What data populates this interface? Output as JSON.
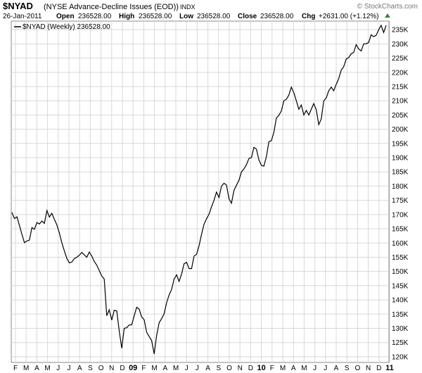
{
  "header": {
    "symbol": "$NYAD",
    "name": "(NYSE Advance-Decline Issues (EOD))",
    "exchange": "INDX",
    "date": "26-Jan-2011",
    "open_label": "Open",
    "open_value": "236528.00",
    "high_label": "High",
    "high_value": "236528.00",
    "low_label": "Low",
    "low_value": "236528.00",
    "close_label": "Close",
    "close_value": "236528.00",
    "chg_label": "Chg",
    "chg_value": "+2631.00 (+1.12%)",
    "brand": "© StockCharts.com"
  },
  "legend": {
    "text": "$NYAD (Weekly) 236528.00"
  },
  "colors": {
    "line": "#000000",
    "grid": "#d8d8d8",
    "frame": "#888888",
    "up_arrow": "#2e8b2e"
  },
  "chart_data": {
    "type": "line",
    "title": "$NYAD (NYSE Advance-Decline Issues (EOD))",
    "series": [
      {
        "name": "$NYAD (Weekly)",
        "values": [
          170.7,
          168.6,
          169.2,
          166.2,
          163.0,
          160.1,
          160.7,
          161.0,
          165.4,
          164.8,
          167.2,
          166.7,
          167.7,
          166.9,
          171.4,
          169.1,
          170.4,
          168.3,
          166.4,
          163.5,
          160.1,
          157.2,
          154.6,
          153.0,
          153.3,
          154.5,
          155.0,
          155.7,
          156.7,
          155.8,
          155.0,
          156.8,
          155.4,
          153.5,
          152.2,
          150.3,
          148.4,
          147.3,
          134.4,
          136.5,
          132.9,
          136.3,
          136.1,
          129.1,
          123.0,
          130.0,
          130.2,
          131.2,
          131.2,
          134.4,
          137.4,
          136.7,
          134.0,
          133.0,
          128.6,
          127.1,
          125.7,
          121.0,
          127.5,
          132.0,
          133.4,
          135.1,
          139.0,
          141.7,
          143.7,
          147.3,
          148.8,
          146.5,
          149.1,
          152.7,
          153.2,
          151.0,
          151.0,
          155.4,
          156.0,
          159.0,
          163.0,
          166.6,
          168.5,
          170.1,
          172.7,
          175.0,
          177.9,
          176.0,
          180.0,
          181.0,
          180.4,
          175.5,
          174.0,
          178.5,
          180.3,
          182.0,
          185.0,
          186.0,
          187.5,
          189.7,
          190.0,
          193.6,
          193.0,
          189.2,
          187.3,
          187.0,
          190.4,
          195.6,
          196.0,
          198.9,
          203.9,
          204.9,
          206.4,
          210.0,
          210.5,
          212.0,
          214.8,
          212.8,
          210.0,
          207.0,
          208.5,
          205.0,
          206.6,
          205.0,
          207.0,
          209.0,
          206.8,
          201.6,
          203.6,
          210.0,
          211.0,
          213.5,
          214.8,
          213.5,
          215.8,
          217.8,
          220.8,
          222.0,
          224.7,
          225.2,
          226.5,
          227.0,
          229.7,
          228.2,
          227.5,
          230.0,
          230.0,
          230.5,
          233.2,
          232.5,
          233.0,
          235.0,
          236.5,
          234.0,
          236.5
        ]
      }
    ],
    "x_axis_labels": [
      "F",
      "M",
      "A",
      "M",
      "J",
      "J",
      "A",
      "S",
      "O",
      "N",
      "D",
      "09",
      "F",
      "M",
      "A",
      "M",
      "J",
      "J",
      "A",
      "S",
      "O",
      "N",
      "D",
      "10",
      "F",
      "M",
      "A",
      "M",
      "J",
      "J",
      "A",
      "S",
      "O",
      "N",
      "D",
      "11"
    ],
    "y_tick_labels": [
      "120K",
      "125K",
      "130K",
      "135K",
      "140K",
      "145K",
      "150K",
      "155K",
      "160K",
      "165K",
      "170K",
      "175K",
      "180K",
      "185K",
      "190K",
      "195K",
      "200K",
      "205K",
      "210K",
      "215K",
      "220K",
      "225K",
      "230K",
      "235K"
    ],
    "ylim": [
      118,
      238
    ],
    "y_unit": "K",
    "grid": true,
    "legend_position": "top-left"
  }
}
